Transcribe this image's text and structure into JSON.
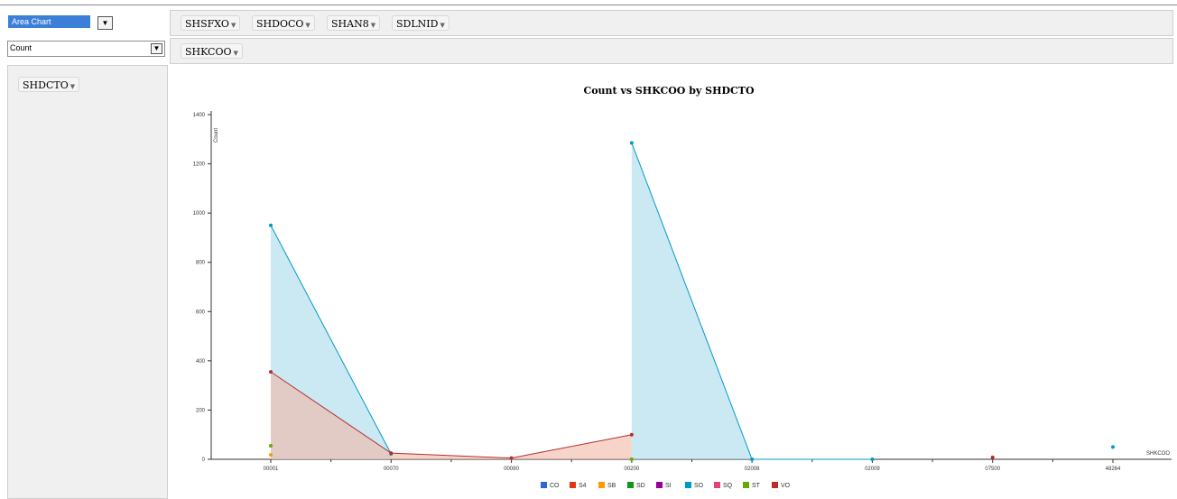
{
  "renderer": {
    "selected": "Area Chart"
  },
  "aggregator": {
    "selected": "Count"
  },
  "column_fields": [
    "SHSFXO",
    "SHDOCO",
    "SHAN8",
    "SDLNID"
  ],
  "row_fields": [
    "SHKCOO"
  ],
  "unused_fields": [
    "SHDCTO"
  ],
  "chart_data": {
    "type": "area",
    "title": "Count vs SHKCOO by SHDCTO",
    "xlabel": "SHKCOO",
    "ylabel": "Count",
    "categories": [
      "00001",
      "00070",
      "00080",
      "00200",
      "02008",
      "02009",
      "07500",
      "48264"
    ],
    "ylim": [
      0,
      1400
    ],
    "yticks": [
      0,
      200,
      400,
      600,
      800,
      1000,
      1200,
      1400
    ],
    "series": [
      {
        "name": "CO",
        "color": "#3366cc",
        "values": [
          0,
          null,
          null,
          null,
          null,
          null,
          null,
          null
        ]
      },
      {
        "name": "S4",
        "color": "#dc3912",
        "values": [
          0,
          null,
          null,
          null,
          null,
          null,
          null,
          null
        ]
      },
      {
        "name": "SB",
        "color": "#ff9900",
        "values": [
          18,
          null,
          null,
          null,
          null,
          null,
          null,
          null
        ]
      },
      {
        "name": "SD",
        "color": "#109618",
        "values": [
          0,
          null,
          null,
          null,
          null,
          null,
          null,
          null
        ]
      },
      {
        "name": "SI",
        "color": "#990099",
        "values": [
          0,
          null,
          null,
          null,
          null,
          null,
          null,
          null
        ]
      },
      {
        "name": "SO",
        "color": "#0099c6",
        "values": [
          950,
          22,
          null,
          1285,
          0,
          0,
          null,
          50
        ]
      },
      {
        "name": "SQ",
        "color": "#dd4477",
        "values": [
          0,
          null,
          null,
          null,
          null,
          null,
          null,
          null
        ]
      },
      {
        "name": "ST",
        "color": "#66aa00",
        "values": [
          55,
          null,
          null,
          0,
          null,
          null,
          null,
          null
        ]
      },
      {
        "name": "VO",
        "color": "#b82e2e",
        "values": [
          355,
          25,
          5,
          100,
          null,
          null,
          8,
          null
        ]
      }
    ],
    "legend_position": "bottom"
  }
}
